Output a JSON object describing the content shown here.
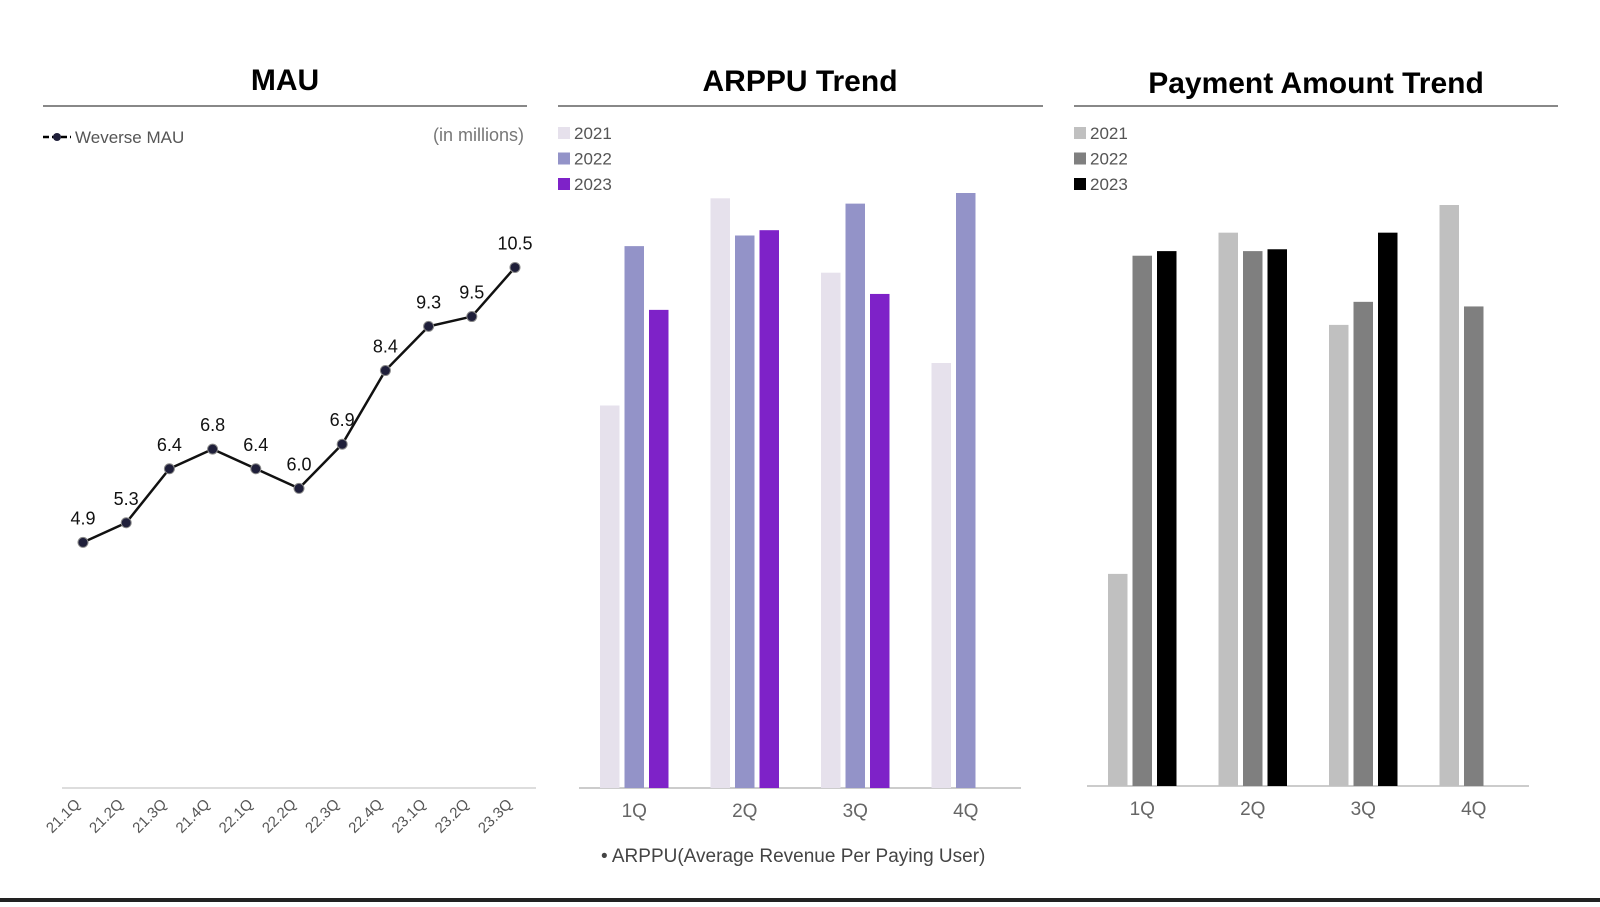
{
  "colors": {
    "line": "#111111",
    "marker": "#1f1f3a",
    "rule": "#888888",
    "axis": "#bbbbbb",
    "arppu": [
      "#e6e1ec",
      "#9393c8",
      "#7e22c8"
    ],
    "payment": [
      "#c0c0c0",
      "#7f7f7f",
      "#000000"
    ]
  },
  "chart_data": [
    {
      "type": "line",
      "title": "MAU",
      "unit_label": "(in millions)",
      "legend_label": "Weverse MAU",
      "x": [
        "21.1Q",
        "21.2Q",
        "21.3Q",
        "21.4Q",
        "22.1Q",
        "22.2Q",
        "22.3Q",
        "22.4Q",
        "23.1Q",
        "23.2Q",
        "23.3Q"
      ],
      "series": [
        {
          "name": "Weverse MAU",
          "values": [
            4.9,
            5.3,
            6.4,
            6.8,
            6.4,
            6.0,
            6.9,
            8.4,
            9.3,
            9.5,
            10.5
          ]
        }
      ],
      "data_labels": [
        "4.9",
        "5.3",
        "6.4",
        "6.8",
        "6.4",
        "6.0",
        "6.9",
        "8.4",
        "9.3",
        "9.5",
        "10.5"
      ],
      "ylim": [
        0,
        11
      ]
    },
    {
      "type": "bar",
      "title": "ARPPU Trend",
      "categories": [
        "1Q",
        "2Q",
        "3Q",
        "4Q"
      ],
      "series": [
        {
          "name": "2021",
          "values": [
            36,
            55.5,
            48.5,
            40
          ]
        },
        {
          "name": "2022",
          "values": [
            51,
            52,
            55,
            56
          ]
        },
        {
          "name": "2023",
          "values": [
            45,
            52.5,
            46.5,
            null
          ]
        }
      ],
      "ylim": [
        0,
        56
      ],
      "footnote": "• ARPPU(Average Revenue Per Paying User)"
    },
    {
      "type": "bar",
      "title": "Payment Amount Trend",
      "categories": [
        "1Q",
        "2Q",
        "3Q",
        "4Q"
      ],
      "series": [
        {
          "name": "2021",
          "values": [
            23,
            60,
            50,
            63
          ]
        },
        {
          "name": "2022",
          "values": [
            57.5,
            58,
            52.5,
            52
          ]
        },
        {
          "name": "2023",
          "values": [
            58,
            58.2,
            60,
            null
          ]
        }
      ],
      "ylim": [
        0,
        63
      ]
    }
  ]
}
